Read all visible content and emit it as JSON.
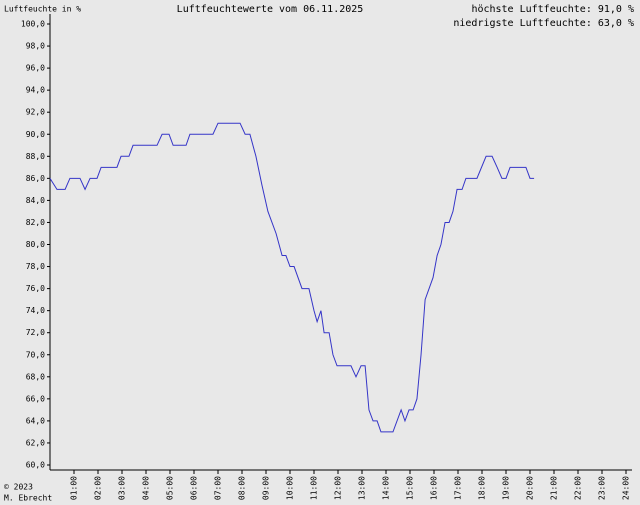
{
  "chart_data": {
    "type": "line",
    "title": "Luftfeuchtewerte vom 06.11.2025",
    "ylabel": "Luftfeuchte in %",
    "annotations": [
      "höchste Luftfeuchte: 91,0 %",
      "niedrigste Luftfeuchte: 63,0 %"
    ],
    "credit": [
      "© 2023",
      "M. Ebrecht"
    ],
    "color": "#3535c8",
    "x": [
      0,
      0.29,
      0.63,
      0.83,
      1.25,
      1.46,
      1.67,
      1.96,
      2.13,
      2.79,
      2.96,
      3.29,
      3.46,
      4.46,
      4.67,
      4.96,
      5.13,
      5.67,
      5.83,
      6.79,
      7.0,
      7.92,
      8.13,
      8.33,
      8.58,
      8.83,
      9.08,
      9.42,
      9.67,
      9.83,
      10.0,
      10.17,
      10.5,
      10.79,
      11.0,
      11.13,
      11.29,
      11.42,
      11.63,
      11.79,
      11.96,
      12.54,
      12.75,
      12.96,
      13.13,
      13.29,
      13.46,
      13.63,
      13.79,
      14.29,
      14.63,
      14.79,
      14.96,
      15.13,
      15.29,
      15.46,
      15.63,
      15.96,
      16.13,
      16.29,
      16.46,
      16.63,
      16.79,
      16.96,
      17.17,
      17.33,
      17.79,
      18.17,
      18.42,
      18.63,
      18.83,
      19.0,
      19.17,
      19.83,
      20.0,
      20.17
    ],
    "values": [
      86,
      85,
      85,
      86,
      86,
      85,
      86,
      86,
      87,
      87,
      88,
      88,
      89,
      89,
      90,
      90,
      89,
      89,
      90,
      90,
      91,
      91,
      90,
      90,
      88,
      85.4,
      83,
      81,
      79,
      79,
      78,
      78,
      76,
      76,
      74,
      73,
      74,
      72,
      72,
      70,
      69,
      69,
      68,
      69,
      69,
      65,
      64,
      64,
      63,
      63,
      65,
      64,
      65,
      65,
      66,
      70,
      75,
      77,
      79,
      80,
      82,
      82,
      83,
      85,
      85,
      86,
      86,
      88,
      88,
      87,
      86,
      86,
      87,
      87,
      86,
      86
    ],
    "xlim": [
      0,
      24
    ],
    "xticks": [
      {
        "value": 1,
        "label": "01:00"
      },
      {
        "value": 2,
        "label": "02:00"
      },
      {
        "value": 3,
        "label": "03:00"
      },
      {
        "value": 4,
        "label": "04:00"
      },
      {
        "value": 5,
        "label": "05:00"
      },
      {
        "value": 6,
        "label": "06:00"
      },
      {
        "value": 7,
        "label": "07:00"
      },
      {
        "value": 8,
        "label": "08:00"
      },
      {
        "value": 9,
        "label": "09:00"
      },
      {
        "value": 10,
        "label": "10:00"
      },
      {
        "value": 11,
        "label": "11:00"
      },
      {
        "value": 12,
        "label": "12:00"
      },
      {
        "value": 13,
        "label": "13:00"
      },
      {
        "value": 14,
        "label": "14:00"
      },
      {
        "value": 15,
        "label": "15:00"
      },
      {
        "value": 16,
        "label": "16:00"
      },
      {
        "value": 17,
        "label": "17:00"
      },
      {
        "value": 18,
        "label": "18:00"
      },
      {
        "value": 19,
        "label": "19:00"
      },
      {
        "value": 20,
        "label": "20:00"
      },
      {
        "value": 21,
        "label": "21:00"
      },
      {
        "value": 22,
        "label": "22:00"
      },
      {
        "value": 23,
        "label": "23:00"
      },
      {
        "value": 24,
        "label": "24:00"
      }
    ],
    "ylim": [
      60,
      100
    ],
    "yticks": [
      {
        "value": 60,
        "label": "60,0"
      },
      {
        "value": 62,
        "label": "62,0"
      },
      {
        "value": 64,
        "label": "64,0"
      },
      {
        "value": 66,
        "label": "66,0"
      },
      {
        "value": 68,
        "label": "68,0"
      },
      {
        "value": 70,
        "label": "70,0"
      },
      {
        "value": 72,
        "label": "72,0"
      },
      {
        "value": 74,
        "label": "74,0"
      },
      {
        "value": 76,
        "label": "76,0"
      },
      {
        "value": 78,
        "label": "78,0"
      },
      {
        "value": 80,
        "label": "80,0"
      },
      {
        "value": 82,
        "label": "82,0"
      },
      {
        "value": 84,
        "label": "84,0"
      },
      {
        "value": 86,
        "label": "86,0"
      },
      {
        "value": 88,
        "label": "88,0"
      },
      {
        "value": 90,
        "label": "90,0"
      },
      {
        "value": 92,
        "label": "92,0"
      },
      {
        "value": 94,
        "label": "94,0"
      },
      {
        "value": 96,
        "label": "96,0"
      },
      {
        "value": 98,
        "label": "98,0"
      },
      {
        "value": 100,
        "label": "100,0"
      }
    ]
  }
}
